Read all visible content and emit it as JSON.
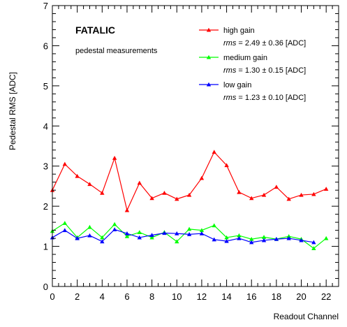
{
  "chart_data": {
    "type": "line",
    "xlabel": "Readout Channel",
    "ylabel": "Pedestal RMS [ADC]",
    "xlim": [
      0,
      23
    ],
    "ylim": [
      0,
      7
    ],
    "xticks": [
      0,
      2,
      4,
      6,
      8,
      10,
      12,
      14,
      16,
      18,
      20,
      22
    ],
    "yticks": [
      0,
      1,
      2,
      3,
      4,
      5,
      6,
      7
    ],
    "grid": false,
    "legend_position": "top-right",
    "annotations": {
      "title": "FATALIC",
      "subtitle": "pedestal measurements"
    },
    "series": [
      {
        "name": "high gain",
        "color": "#ff0000",
        "rms_label": "rms",
        "rms_value": "= 2.49 ± 0.36 [ADC]",
        "x": [
          0,
          1,
          2,
          3,
          4,
          5,
          6,
          7,
          8,
          9,
          10,
          11,
          12,
          13,
          14,
          15,
          16,
          17,
          18,
          19,
          20,
          21,
          22
        ],
        "y": [
          2.4,
          3.05,
          2.75,
          2.55,
          2.33,
          3.2,
          1.9,
          2.58,
          2.2,
          2.33,
          2.18,
          2.28,
          2.7,
          3.35,
          3.02,
          2.35,
          2.2,
          2.28,
          2.48,
          2.18,
          2.28,
          2.3,
          2.43
        ]
      },
      {
        "name": "medium gain",
        "color": "#00ff00",
        "rms_label": "rms",
        "rms_value": "= 1.30 ± 0.15 [ADC]",
        "x": [
          0,
          1,
          2,
          3,
          4,
          5,
          6,
          7,
          8,
          9,
          10,
          11,
          12,
          13,
          14,
          15,
          16,
          17,
          18,
          19,
          20,
          21,
          22
        ],
        "y": [
          1.38,
          1.58,
          1.22,
          1.48,
          1.22,
          1.55,
          1.25,
          1.35,
          1.22,
          1.35,
          1.12,
          1.43,
          1.4,
          1.52,
          1.22,
          1.27,
          1.18,
          1.23,
          1.18,
          1.25,
          1.18,
          0.95,
          1.2
        ]
      },
      {
        "name": "low gain",
        "color": "#0000ff",
        "rms_label": "rms",
        "rms_value": "= 1.23 ± 0.10 [ADC]",
        "x": [
          0,
          1,
          2,
          3,
          4,
          5,
          6,
          7,
          8,
          9,
          10,
          11,
          12,
          13,
          14,
          15,
          16,
          17,
          18,
          19,
          20,
          21
        ],
        "y": [
          1.22,
          1.4,
          1.2,
          1.27,
          1.12,
          1.42,
          1.32,
          1.22,
          1.28,
          1.33,
          1.32,
          1.3,
          1.32,
          1.17,
          1.13,
          1.2,
          1.1,
          1.15,
          1.18,
          1.2,
          1.15,
          1.1
        ]
      }
    ]
  }
}
